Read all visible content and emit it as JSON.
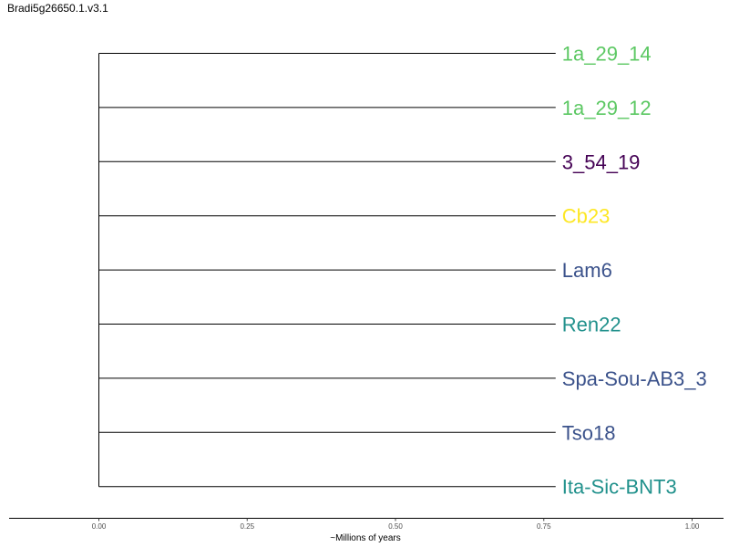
{
  "chart_data": {
    "type": "dendrogram",
    "title": "Bradi5g26650.1.v3.1",
    "xlabel": "~Millions of years",
    "xlim": [
      0.0,
      1.0
    ],
    "x_ticks": [
      "0.00",
      "0.25",
      "0.50",
      "0.75",
      "1.00"
    ],
    "tips": [
      {
        "label": "1a_29_14",
        "branch_end": 0.77,
        "color": "#5cc863"
      },
      {
        "label": "1a_29_12",
        "branch_end": 0.77,
        "color": "#5cc863"
      },
      {
        "label": "3_54_19",
        "branch_end": 0.77,
        "color": "#440154"
      },
      {
        "label": "Cb23",
        "branch_end": 0.77,
        "color": "#fde725"
      },
      {
        "label": "Lam6",
        "branch_end": 0.77,
        "color": "#3b528b"
      },
      {
        "label": "Ren22",
        "branch_end": 0.77,
        "color": "#21918c"
      },
      {
        "label": "Spa-Sou-AB3_3",
        "branch_end": 0.77,
        "color": "#3b528b"
      },
      {
        "label": "Tso18",
        "branch_end": 0.77,
        "color": "#3b528b"
      },
      {
        "label": "Ita-Sic-BNT3",
        "branch_end": 0.77,
        "color": "#21918c"
      }
    ],
    "root_x": 0.0,
    "grid": false
  }
}
